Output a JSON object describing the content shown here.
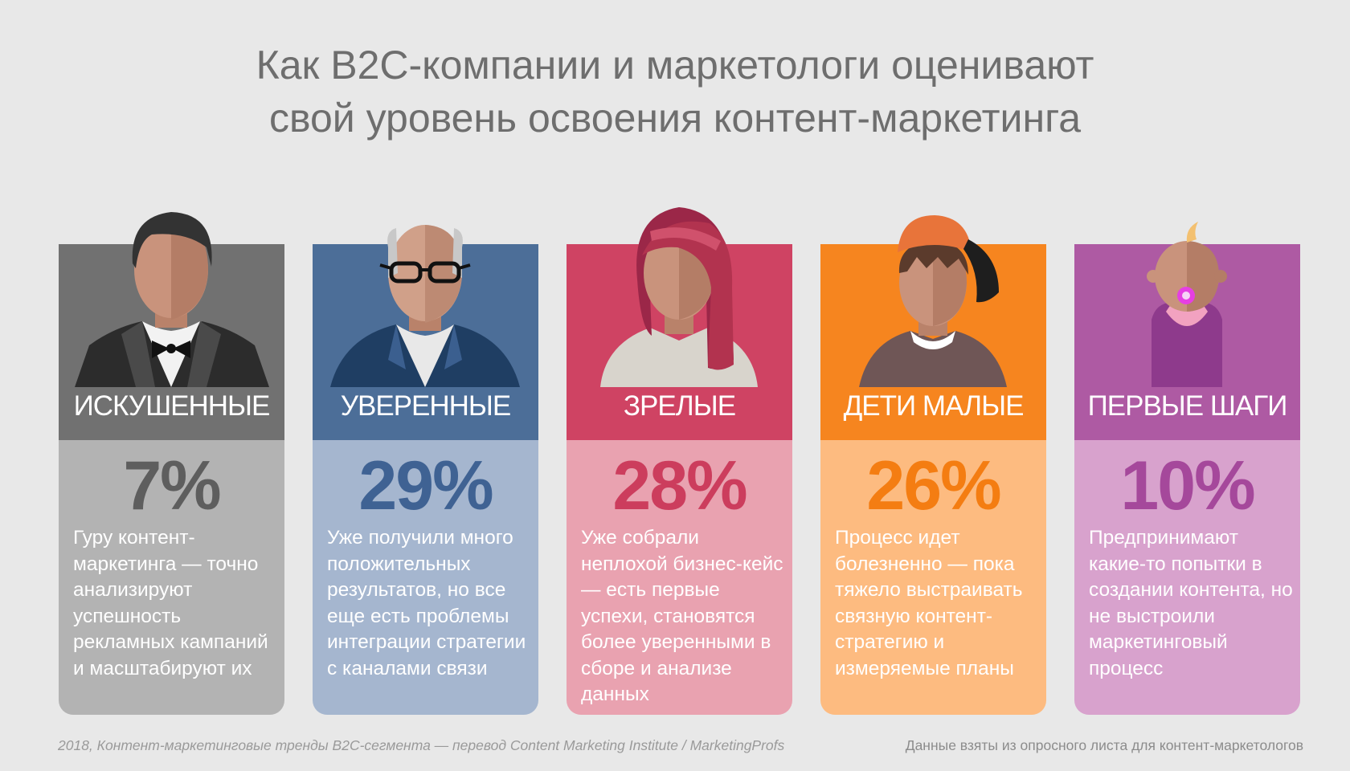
{
  "title": {
    "line1": "Как B2C-компании и маркетологи оценивают",
    "line2": "свой уровень освоения контент-маркетинга"
  },
  "cards": [
    {
      "label": "ИСКУШЕННЫЕ",
      "percent": "7%",
      "description": "Гуру контент-маркетинга — точно анализируют успешность рекламных кампаний и масштабируют их",
      "icon": "sophisticated-avatar-icon",
      "head_color": "#717171",
      "body_color": "#b3b3b3",
      "percent_color": "#5e5e5e"
    },
    {
      "label": "УВЕРЕННЫЕ",
      "percent": "29%",
      "description": "Уже получили много положительных результатов, но все еще есть проблемы интеграции стратегии с каналами связи",
      "icon": "confident-avatar-icon",
      "head_color": "#4c6e98",
      "body_color": "#a5b6cf",
      "percent_color": "#3f6293"
    },
    {
      "label": "ЗРЕЛЫЕ",
      "percent": "28%",
      "description": "Уже собрали неплохой бизнес-кейс — есть первые успехи, становятся более уверенными в сборе и анализе данных",
      "icon": "mature-avatar-icon",
      "head_color": "#cf4363",
      "body_color": "#e9a2b0",
      "percent_color": "#cc3d5d"
    },
    {
      "label": "ДЕТИ МАЛЫЕ",
      "percent": "26%",
      "description": "Процесс идет болезненно — пока тяжело выстраивать связную контент-стратегию и измеряемые планы",
      "icon": "young-avatar-icon",
      "head_color": "#f6851f",
      "body_color": "#fdbb80",
      "percent_color": "#f47d12"
    },
    {
      "label": "ПЕРВЫЕ ШАГИ",
      "percent": "10%",
      "description": "Предпринимают какие-то попытки в создании контента, но не выстроили маркетинговый процесс",
      "icon": "baby-avatar-icon",
      "head_color": "#ae5aa3",
      "body_color": "#d8a2cd",
      "percent_color": "#a5489b"
    }
  ],
  "footer": {
    "source": "2018, Контент-маркетинговые тренды B2C-сегмента — перевод Content Marketing Institute / MarketingProfs",
    "note": "Данные взяты из опросного листа для контент-маркетологов"
  }
}
